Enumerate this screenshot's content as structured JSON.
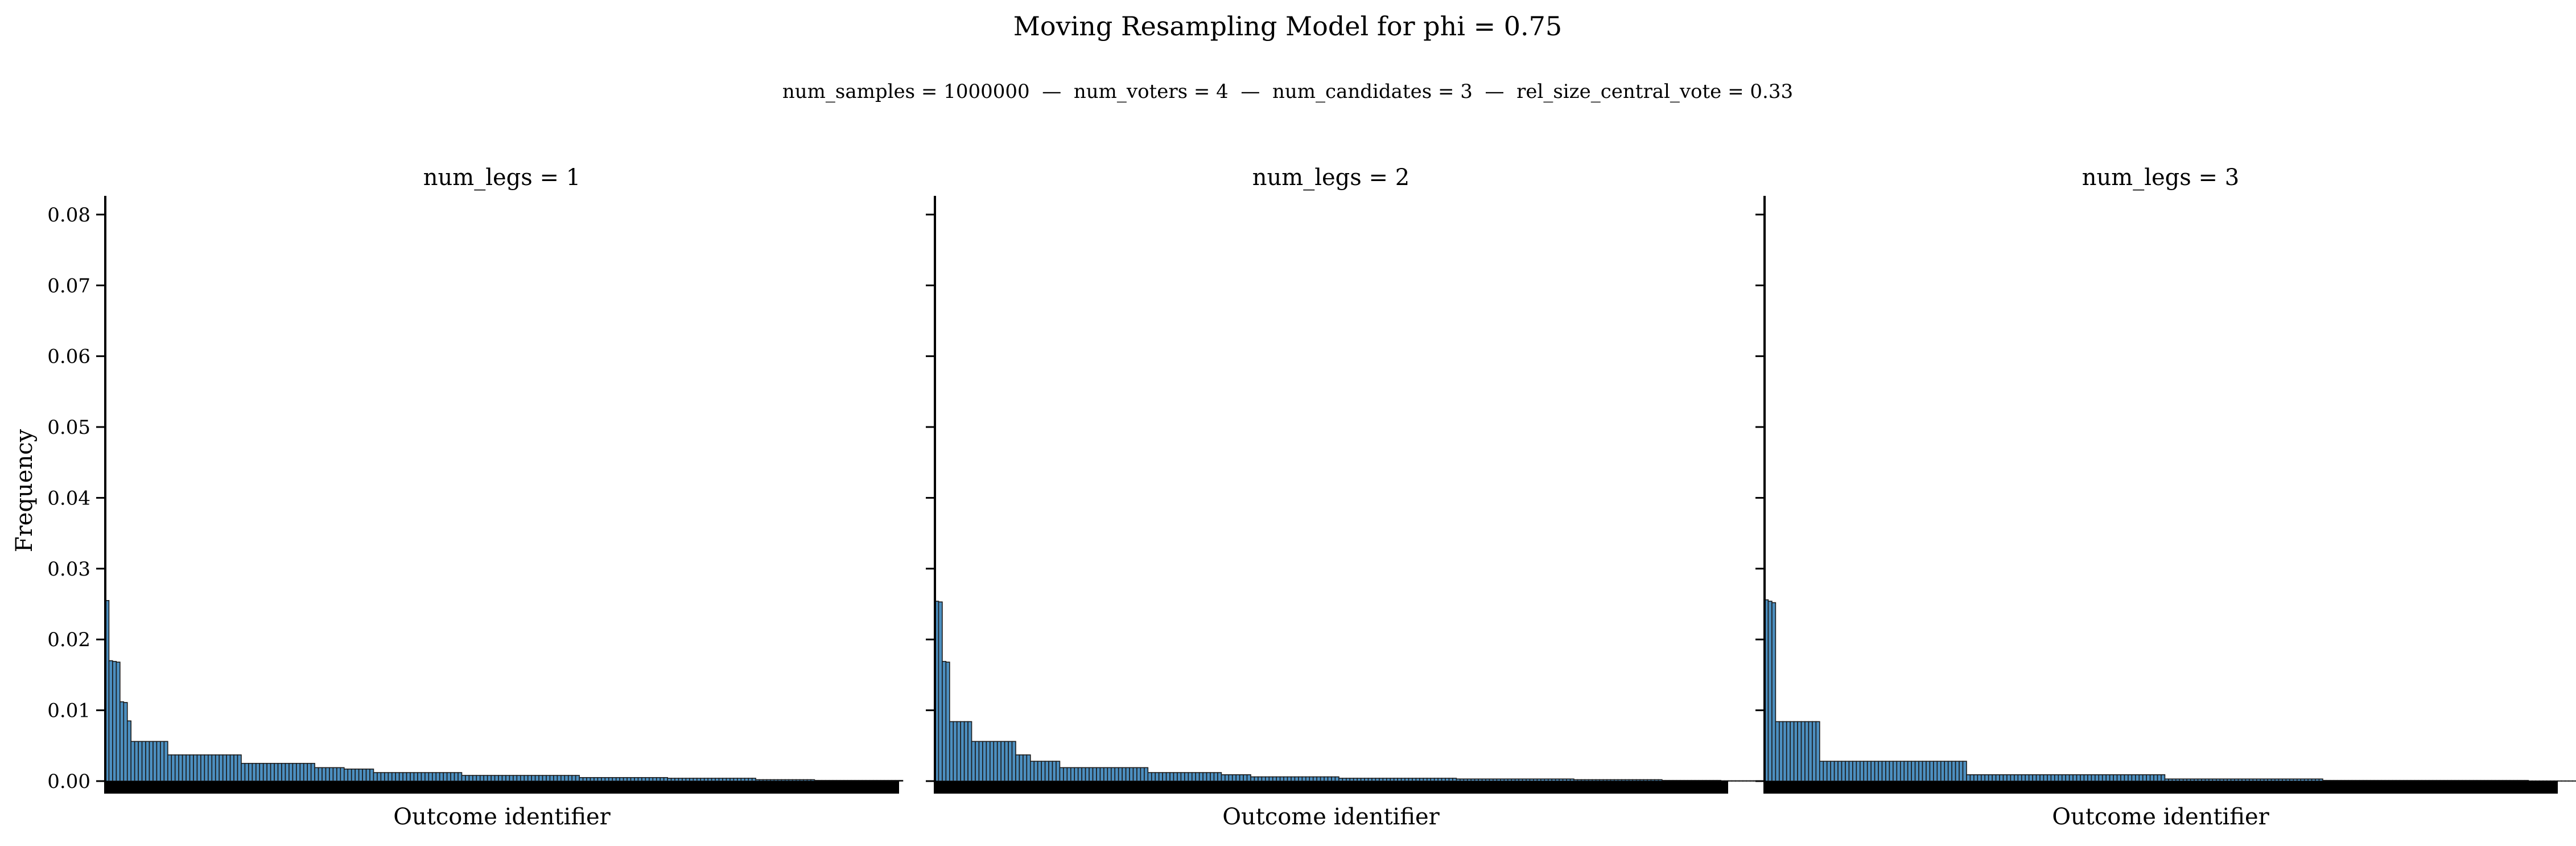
{
  "figure": {
    "title": "Moving Resampling Model for phi = 0.75",
    "subtitle": "num_samples = 1000000  —  num_voters = 4  —  num_candidates = 3  —  rel_size_central_vote = 0.33",
    "bar_color": "#4c8fc0",
    "edge_color": "#1b1b1b"
  },
  "chart_data": [
    {
      "type": "bar",
      "title": "num_legs = 1",
      "xlabel": "Outcome identifier",
      "ylabel": "Frequency",
      "ylim": [
        0,
        0.082
      ],
      "yticks": [
        "0.00",
        "0.01",
        "0.02",
        "0.03",
        "0.04",
        "0.05",
        "0.06",
        "0.07",
        "0.08"
      ],
      "grid": false,
      "num_categories": 216,
      "values": [
        0.0255,
        0.017,
        0.0169,
        0.0168,
        0.0112,
        0.0111,
        0.0085,
        0.0056,
        0.0056,
        0.0056,
        0.0056,
        0.0056,
        0.0056,
        0.0056,
        0.0056,
        0.0056,
        0.0056,
        0.0037,
        0.0037,
        0.0037,
        0.0037,
        0.0037,
        0.0037,
        0.0037,
        0.0037,
        0.0037,
        0.0037,
        0.0037,
        0.0037,
        0.0037,
        0.0037,
        0.0037,
        0.0037,
        0.0037,
        0.0037,
        0.0037,
        0.0037,
        0.0025,
        0.0025,
        0.0025,
        0.0025,
        0.0025,
        0.0025,
        0.0025,
        0.0025,
        0.0025,
        0.0025,
        0.0025,
        0.0025,
        0.0025,
        0.0025,
        0.0025,
        0.0025,
        0.0025,
        0.0025,
        0.0025,
        0.0025,
        0.0019,
        0.0019,
        0.0019,
        0.0019,
        0.0019,
        0.0019,
        0.0019,
        0.0019,
        0.0017,
        0.0017,
        0.0017,
        0.0017,
        0.0017,
        0.0017,
        0.0017,
        0.0017,
        0.0012,
        0.0012,
        0.0012,
        0.0012,
        0.0012,
        0.0012,
        0.0012,
        0.0012,
        0.0012,
        0.0012,
        0.0012,
        0.0012,
        0.0012,
        0.0012,
        0.0012,
        0.0012,
        0.0012,
        0.0012,
        0.0012,
        0.0012,
        0.0012,
        0.0012,
        0.0012,
        0.0012,
        0.0008,
        0.0008,
        0.0008,
        0.0008,
        0.0008,
        0.0008,
        0.0008,
        0.0008,
        0.0008,
        0.0008,
        0.0008,
        0.0008,
        0.0008,
        0.0008,
        0.0008,
        0.0008,
        0.0008,
        0.0008,
        0.0008,
        0.0008,
        0.0008,
        0.0008,
        0.0008,
        0.0008,
        0.0008,
        0.0008,
        0.0008,
        0.0008,
        0.0008,
        0.0008,
        0.0008,
        0.0008,
        0.0005,
        0.0005,
        0.0005,
        0.0005,
        0.0005,
        0.0005,
        0.0005,
        0.0005,
        0.0005,
        0.0005,
        0.0005,
        0.0005,
        0.0005,
        0.0005,
        0.0005,
        0.0005,
        0.0005,
        0.0005,
        0.0005,
        0.0005,
        0.0005,
        0.0005,
        0.0005,
        0.0005,
        0.0004,
        0.0004,
        0.0004,
        0.0004,
        0.0004,
        0.0004,
        0.0004,
        0.0004,
        0.0004,
        0.0004,
        0.0004,
        0.0004,
        0.0004,
        0.0004,
        0.0004,
        0.0004,
        0.0004,
        0.0004,
        0.0004,
        0.0004,
        0.0004,
        0.0004,
        0.0004,
        0.0004,
        0.0002,
        0.0002,
        0.0002,
        0.0002,
        0.0002,
        0.0002,
        0.0002,
        0.0002,
        0.0002,
        0.0002,
        0.0002,
        0.0002,
        0.0002,
        0.0002,
        0.0002,
        0.0002,
        0.0001,
        0.0001,
        0.0001,
        0.0001,
        0.0001,
        0.0001,
        0.0001,
        0.0001,
        0.0001,
        0.0001,
        0.0001,
        0.0001,
        0.0001,
        0.0001,
        0.0001,
        0.0001,
        0.0001,
        0.0001,
        0.0001,
        0.0001,
        0.0001,
        0.0001,
        0.0001,
        0.0001
      ]
    },
    {
      "type": "bar",
      "title": "num_legs = 2",
      "xlabel": "Outcome identifier",
      "ylabel": "",
      "ylim": [
        0,
        0.082
      ],
      "grid": false,
      "num_categories": 216,
      "values": [
        0.0254,
        0.0253,
        0.0169,
        0.0168,
        0.0084,
        0.0084,
        0.0084,
        0.0084,
        0.0084,
        0.0084,
        0.0056,
        0.0056,
        0.0056,
        0.0056,
        0.0056,
        0.0056,
        0.0056,
        0.0056,
        0.0056,
        0.0056,
        0.0056,
        0.0056,
        0.0037,
        0.0037,
        0.0037,
        0.0037,
        0.0028,
        0.0028,
        0.0028,
        0.0028,
        0.0028,
        0.0028,
        0.0028,
        0.0028,
        0.0019,
        0.0019,
        0.0019,
        0.0019,
        0.0019,
        0.0019,
        0.0019,
        0.0019,
        0.0019,
        0.0019,
        0.0019,
        0.0019,
        0.0019,
        0.0019,
        0.0019,
        0.0019,
        0.0019,
        0.0019,
        0.0019,
        0.0019,
        0.0019,
        0.0019,
        0.0019,
        0.0019,
        0.0012,
        0.0012,
        0.0012,
        0.0012,
        0.0012,
        0.0012,
        0.0012,
        0.0012,
        0.0012,
        0.0012,
        0.0012,
        0.0012,
        0.0012,
        0.0012,
        0.0012,
        0.0012,
        0.0012,
        0.0012,
        0.0012,
        0.0012,
        0.0009,
        0.0009,
        0.0009,
        0.0009,
        0.0009,
        0.0009,
        0.0009,
        0.0009,
        0.0006,
        0.0006,
        0.0006,
        0.0006,
        0.0006,
        0.0006,
        0.0006,
        0.0006,
        0.0006,
        0.0006,
        0.0006,
        0.0006,
        0.0006,
        0.0006,
        0.0006,
        0.0006,
        0.0006,
        0.0006,
        0.0006,
        0.0006,
        0.0006,
        0.0006,
        0.0006,
        0.0006,
        0.0004,
        0.0004,
        0.0004,
        0.0004,
        0.0004,
        0.0004,
        0.0004,
        0.0004,
        0.0004,
        0.0004,
        0.0004,
        0.0004,
        0.0004,
        0.0004,
        0.0004,
        0.0004,
        0.0004,
        0.0004,
        0.0004,
        0.0004,
        0.0004,
        0.0004,
        0.0004,
        0.0004,
        0.0004,
        0.0004,
        0.0004,
        0.0004,
        0.0004,
        0.0004,
        0.0004,
        0.0004,
        0.0003,
        0.0003,
        0.0003,
        0.0003,
        0.0003,
        0.0003,
        0.0003,
        0.0003,
        0.0003,
        0.0003,
        0.0003,
        0.0003,
        0.0003,
        0.0003,
        0.0003,
        0.0003,
        0.0003,
        0.0003,
        0.0003,
        0.0003,
        0.0003,
        0.0003,
        0.0003,
        0.0003,
        0.0003,
        0.0003,
        0.0003,
        0.0003,
        0.0003,
        0.0003,
        0.0003,
        0.0003,
        0.0002,
        0.0002,
        0.0002,
        0.0002,
        0.0002,
        0.0002,
        0.0002,
        0.0002,
        0.0002,
        0.0002,
        0.0002,
        0.0002,
        0.0002,
        0.0002,
        0.0002,
        0.0002,
        0.0002,
        0.0002,
        0.0002,
        0.0002,
        0.0002,
        0.0002,
        0.0002,
        0.0002,
        0.0001,
        0.0001,
        0.0001,
        0.0001,
        0.0001,
        0.0001,
        0.0001,
        0.0001,
        0.0001,
        0.0001,
        0.0001,
        0.0001,
        0.0001,
        0.0001,
        0.0001,
        0.0001,
        5e-05,
        5e-05,
        5e-05,
        5e-05,
        5e-05,
        5e-05,
        5e-05,
        5e-05,
        5e-05,
        5e-05,
        5e-05,
        5e-05,
        5e-05,
        5e-05,
        5e-05,
        5e-05
      ]
    },
    {
      "type": "bar",
      "title": "num_legs = 3",
      "xlabel": "Outcome identifier",
      "ylabel": "",
      "ylim": [
        0,
        0.082
      ],
      "grid": false,
      "num_categories": 216,
      "values": [
        0.0256,
        0.0254,
        0.0252,
        0.0084,
        0.0084,
        0.0084,
        0.0084,
        0.0084,
        0.0084,
        0.0084,
        0.0084,
        0.0084,
        0.0084,
        0.0084,
        0.0084,
        0.0028,
        0.0028,
        0.0028,
        0.0028,
        0.0028,
        0.0028,
        0.0028,
        0.0028,
        0.0028,
        0.0028,
        0.0028,
        0.0028,
        0.0028,
        0.0028,
        0.0028,
        0.0028,
        0.0028,
        0.0028,
        0.0028,
        0.0028,
        0.0028,
        0.0028,
        0.0028,
        0.0028,
        0.0028,
        0.0028,
        0.0028,
        0.0028,
        0.0028,
        0.0028,
        0.0028,
        0.0028,
        0.0028,
        0.0028,
        0.0028,
        0.0028,
        0.0028,
        0.0028,
        0.0028,
        0.0028,
        0.0009,
        0.0009,
        0.0009,
        0.0009,
        0.0009,
        0.0009,
        0.0009,
        0.0009,
        0.0009,
        0.0009,
        0.0009,
        0.0009,
        0.0009,
        0.0009,
        0.0009,
        0.0009,
        0.0009,
        0.0009,
        0.0009,
        0.0009,
        0.0009,
        0.0009,
        0.0009,
        0.0009,
        0.0009,
        0.0009,
        0.0009,
        0.0009,
        0.0009,
        0.0009,
        0.0009,
        0.0009,
        0.0009,
        0.0009,
        0.0009,
        0.0009,
        0.0009,
        0.0009,
        0.0009,
        0.0009,
        0.0009,
        0.0009,
        0.0009,
        0.0009,
        0.0009,
        0.0009,
        0.0009,
        0.0009,
        0.0009,
        0.0009,
        0.0009,
        0.0009,
        0.0009,
        0.0009,
        0.0003,
        0.0003,
        0.0003,
        0.0003,
        0.0003,
        0.0003,
        0.0003,
        0.0003,
        0.0003,
        0.0003,
        0.0003,
        0.0003,
        0.0003,
        0.0003,
        0.0003,
        0.0003,
        0.0003,
        0.0003,
        0.0003,
        0.0003,
        0.0003,
        0.0003,
        0.0003,
        0.0003,
        0.0003,
        0.0003,
        0.0003,
        0.0003,
        0.0003,
        0.0003,
        0.0003,
        0.0003,
        0.0003,
        0.0003,
        0.0003,
        0.0003,
        0.0003,
        0.0003,
        0.0003,
        0.0003,
        0.0003,
        0.0003,
        0.0003,
        0.0001,
        0.0001,
        0.0001,
        0.0001,
        0.0001,
        0.0001,
        0.0001,
        0.0001,
        0.0001,
        0.0001,
        0.0001,
        0.0001,
        0.0001,
        0.0001,
        0.0001,
        0.0001,
        0.0001,
        0.0001,
        0.0001,
        0.0001,
        0.0001,
        0.0001,
        0.0001,
        0.0001,
        0.0001,
        0.0001,
        0.0001,
        0.0001,
        0.0001,
        0.0001,
        0.0001,
        0.0001,
        0.0001,
        0.0001,
        0.0001,
        0.0001,
        0.0001,
        0.0001,
        0.0001,
        0.0001,
        0.0001,
        0.0001,
        0.0001,
        0.0001,
        0.0001,
        0.0001,
        0.0001,
        0.0001,
        0.0001,
        0.0001,
        0.0001,
        0.0001,
        0.0001,
        0.0001,
        0.0001,
        0.0001,
        3e-05,
        3e-05,
        3e-05,
        3e-05,
        3e-05,
        3e-05,
        3e-05,
        3e-05,
        3e-05,
        3e-05,
        3e-05,
        3e-05,
        3e-05,
        3e-05,
        3e-05,
        3e-05,
        3e-05,
        3e-05,
        3e-05,
        3e-05,
        3e-05,
        3e-05,
        3e-05,
        3e-05,
        3e-05,
        3e-05,
        3e-05,
        3e-05,
        3e-05,
        3e-05,
        3e-05,
        3e-05,
        3e-05,
        3e-05,
        3e-05,
        3e-05,
        3e-05,
        3e-05,
        3e-05,
        3e-05,
        3e-05,
        3e-05,
        3e-05,
        3e-05,
        3e-05
      ]
    }
  ]
}
